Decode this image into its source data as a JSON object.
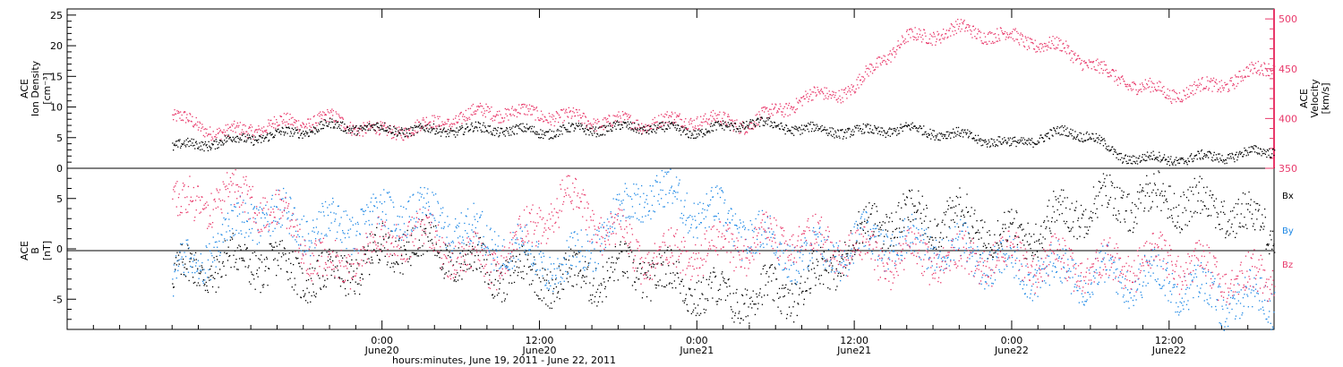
{
  "chart_data": [
    {
      "type": "scatter",
      "panel": "top",
      "ylabel_left": [
        "ACE",
        "Ion Density",
        "[cm⁻³]"
      ],
      "ylabel_right": [
        "ACE",
        "Velocity",
        "[km/s]"
      ],
      "ylim_left": [
        0,
        26
      ],
      "ylim_right": [
        350,
        510
      ],
      "yticks_left": [
        "0",
        "5",
        "10",
        "15",
        "20",
        "25"
      ],
      "yticks_right": [
        "350",
        "400",
        "450",
        "500"
      ],
      "series": [
        {
          "name": "Ion Density",
          "color": "#000000",
          "x_hours": [
            0,
            4,
            8,
            12,
            16,
            20,
            24,
            28,
            32,
            36,
            40,
            44,
            48,
            52,
            56,
            60,
            64,
            68,
            70,
            72,
            76,
            80,
            84
          ],
          "y": [
            3.5,
            4.5,
            5.5,
            7,
            6.5,
            6.2,
            6.5,
            6,
            6.5,
            6.8,
            6,
            7.5,
            6.5,
            6,
            6.5,
            5.5,
            4,
            6,
            5.5,
            2,
            1.5,
            2,
            3
          ]
        },
        {
          "name": "Velocity",
          "color": "#e8386a",
          "x_hours": [
            0,
            4,
            8,
            12,
            16,
            20,
            24,
            28,
            32,
            36,
            40,
            44,
            48,
            52,
            54,
            56,
            60,
            64,
            68,
            72,
            76,
            80,
            84
          ],
          "y": [
            402,
            385,
            395,
            400,
            386,
            395,
            408,
            405,
            398,
            396,
            400,
            395,
            420,
            430,
            460,
            480,
            490,
            482,
            470,
            440,
            425,
            435,
            455
          ]
        }
      ]
    },
    {
      "type": "scatter",
      "panel": "bottom",
      "ylabel_left": [
        "ACE",
        "B",
        "[nT]"
      ],
      "ylim": [
        -8,
        8
      ],
      "yticks": [
        "-5",
        "0",
        "5"
      ],
      "legend": [
        "Bx",
        "By",
        "Bz"
      ],
      "series": [
        {
          "name": "Bx",
          "color": "#000000",
          "x_hours": [
            0,
            6,
            12,
            18,
            24,
            30,
            36,
            42,
            48,
            54,
            60,
            64,
            70,
            76,
            80,
            84
          ],
          "y": [
            -2.5,
            -1,
            -3,
            1,
            -2,
            -3,
            -2,
            -5,
            -4,
            3,
            3,
            1,
            4.5,
            5,
            4,
            2
          ]
        },
        {
          "name": "By",
          "color": "#1e88e5",
          "x_hours": [
            0,
            6,
            12,
            18,
            24,
            30,
            36,
            42,
            48,
            54,
            60,
            64,
            70,
            76,
            80,
            84
          ],
          "y": [
            -3,
            3.5,
            2,
            4,
            1,
            -2,
            6,
            3,
            -1,
            1,
            0,
            -2,
            -2.5,
            -3,
            -5,
            -5
          ]
        },
        {
          "name": "Bz",
          "color": "#e8386a",
          "x_hours": [
            0,
            6,
            12,
            18,
            24,
            30,
            36,
            42,
            48,
            54,
            60,
            64,
            70,
            76,
            80,
            84
          ],
          "y": [
            4,
            5.5,
            -2,
            2,
            -2,
            5,
            -1,
            0,
            1,
            -1,
            -1,
            -1,
            -2,
            -1,
            -3,
            -3
          ]
        }
      ]
    }
  ],
  "xaxis": {
    "ticks": [
      {
        "time": "0:00",
        "day": "June20",
        "hour": 16
      },
      {
        "time": "12:00",
        "day": "June20",
        "hour": 28
      },
      {
        "time": "0:00",
        "day": "June21",
        "hour": 40
      },
      {
        "time": "12:00",
        "day": "June21",
        "hour": 52
      },
      {
        "time": "0:00",
        "day": "June22",
        "hour": 64
      },
      {
        "time": "12:00",
        "day": "June22",
        "hour": 76
      }
    ],
    "range_hours": [
      -8,
      84
    ],
    "label": "hours:minutes, June 19, 2011 - June 22, 2011"
  }
}
